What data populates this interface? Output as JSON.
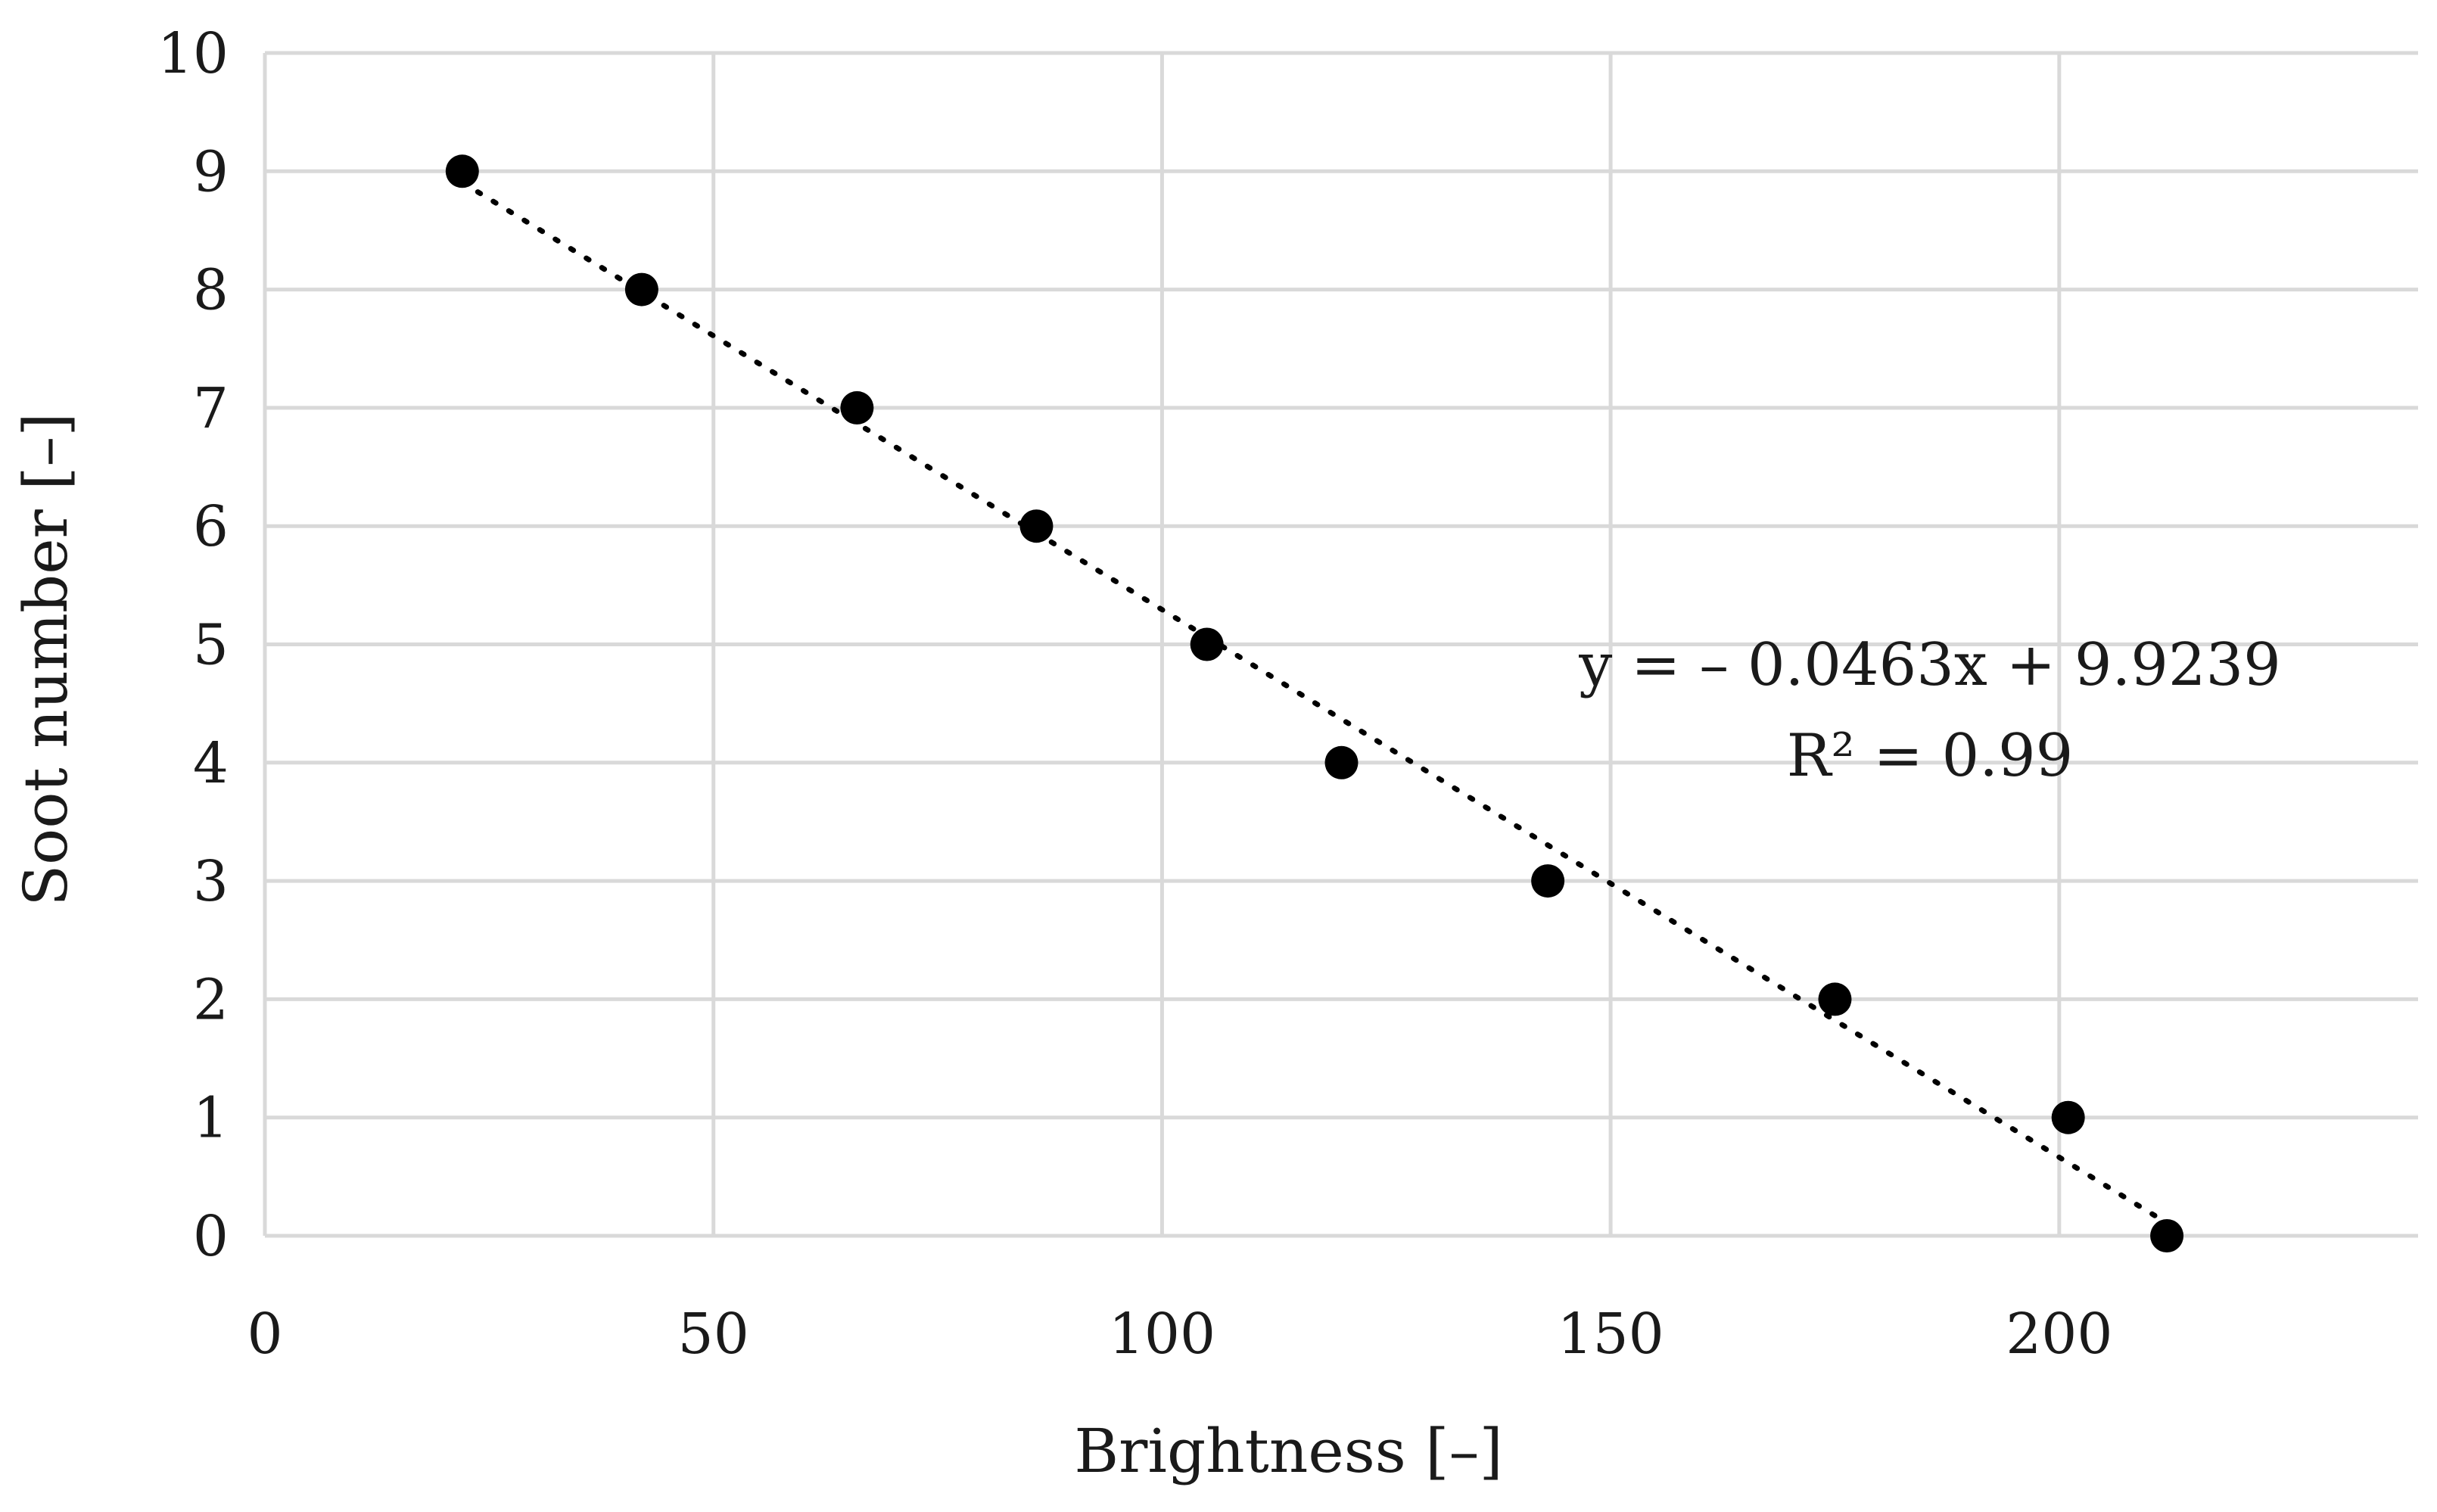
{
  "chart_data": {
    "type": "scatter",
    "title": "",
    "xlabel": "Brightness [–]",
    "ylabel": "Soot number [–]",
    "xlim": [
      0,
      240
    ],
    "ylim": [
      0,
      10
    ],
    "xticks": [
      0,
      50,
      100,
      150,
      200
    ],
    "yticks": [
      0,
      1,
      2,
      3,
      4,
      5,
      6,
      7,
      8,
      9,
      10
    ],
    "grid": true,
    "legend": "none",
    "series": [
      {
        "points": [
          {
            "x": 22,
            "y": 9
          },
          {
            "x": 42,
            "y": 8
          },
          {
            "x": 66,
            "y": 7
          },
          {
            "x": 86,
            "y": 6
          },
          {
            "x": 105,
            "y": 5
          },
          {
            "x": 120,
            "y": 4
          },
          {
            "x": 143,
            "y": 3
          },
          {
            "x": 175,
            "y": 2
          },
          {
            "x": 201,
            "y": 1
          },
          {
            "x": 212,
            "y": 0
          }
        ],
        "color": "#000000"
      }
    ],
    "trendline": {
      "type": "linear",
      "slope": -0.0463,
      "intercept": 9.9239,
      "x_range": [
        22,
        212
      ],
      "style": "dotted",
      "color": "#000000"
    },
    "annotations": [
      {
        "text": "y = – 0.0463x + 9.9239"
      },
      {
        "text": "R² = 0.99"
      }
    ]
  }
}
